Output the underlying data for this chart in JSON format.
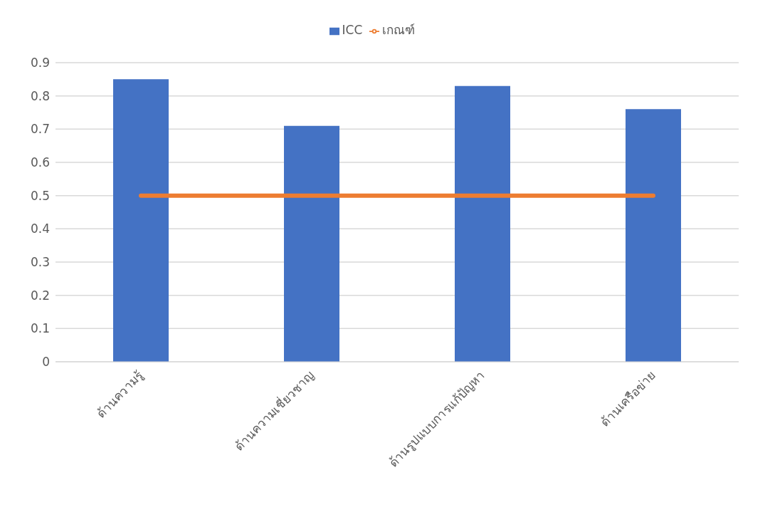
{
  "chart_data": {
    "type": "bar",
    "categories": [
      "ด้านความรู้",
      "ด้านความเชี่ยวชาญ",
      "ด้านรูปแบบการแก้ปัญหา",
      "ด้านเครือข่าย"
    ],
    "series": [
      {
        "name": "ICC",
        "color": "#4472c4",
        "values": [
          0.85,
          0.71,
          0.83,
          0.76
        ]
      },
      {
        "name": "เกณฑ์",
        "type": "line",
        "color": "#ed7d31",
        "values": [
          0.5,
          0.5,
          0.5,
          0.5
        ]
      }
    ],
    "ylim": [
      0,
      0.9
    ],
    "yticks": [
      0,
      0.1,
      0.2,
      0.3,
      0.4,
      0.5,
      0.6,
      0.7,
      0.8,
      0.9
    ],
    "grid": "y",
    "legend": "top",
    "marker": "none",
    "line_style": "solid"
  }
}
